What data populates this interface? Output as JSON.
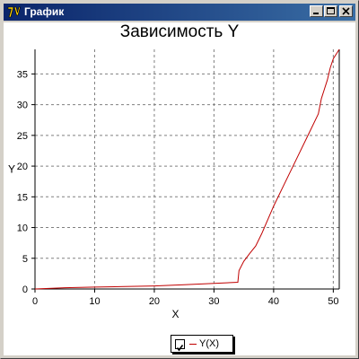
{
  "window": {
    "title": "График"
  },
  "colors": {
    "series": "#c00000",
    "grid": "#808080",
    "axis": "#000000"
  },
  "icons": {
    "app": "app-logo-icon",
    "minimize": "minimize-icon",
    "maximize": "maximize-icon",
    "close": "close-icon"
  },
  "chart_data": {
    "type": "line",
    "title": "Зависимость Y",
    "xlabel": "X",
    "ylabel": "Y",
    "xlim": [
      0,
      51
    ],
    "ylim": [
      0,
      39
    ],
    "xticks": [
      0,
      10,
      20,
      30,
      40,
      50
    ],
    "yticks": [
      0,
      5,
      10,
      15,
      20,
      25,
      30,
      35
    ],
    "grid": true,
    "legend_position": "bottom-center",
    "series": [
      {
        "name": "Y(X)",
        "x": [
          0,
          5,
          10,
          15,
          20,
          25,
          30,
          34,
          34.2,
          35,
          36,
          37,
          38,
          40,
          42,
          44,
          46,
          47.5,
          48,
          48.5,
          49,
          49.5,
          50,
          51
        ],
        "y": [
          0,
          0.2,
          0.3,
          0.4,
          0.5,
          0.7,
          0.9,
          1.1,
          3,
          4.5,
          5.8,
          7,
          9,
          13.5,
          17.5,
          21.5,
          25.5,
          28.5,
          31,
          32.5,
          34,
          36,
          37.5,
          39
        ]
      }
    ]
  }
}
